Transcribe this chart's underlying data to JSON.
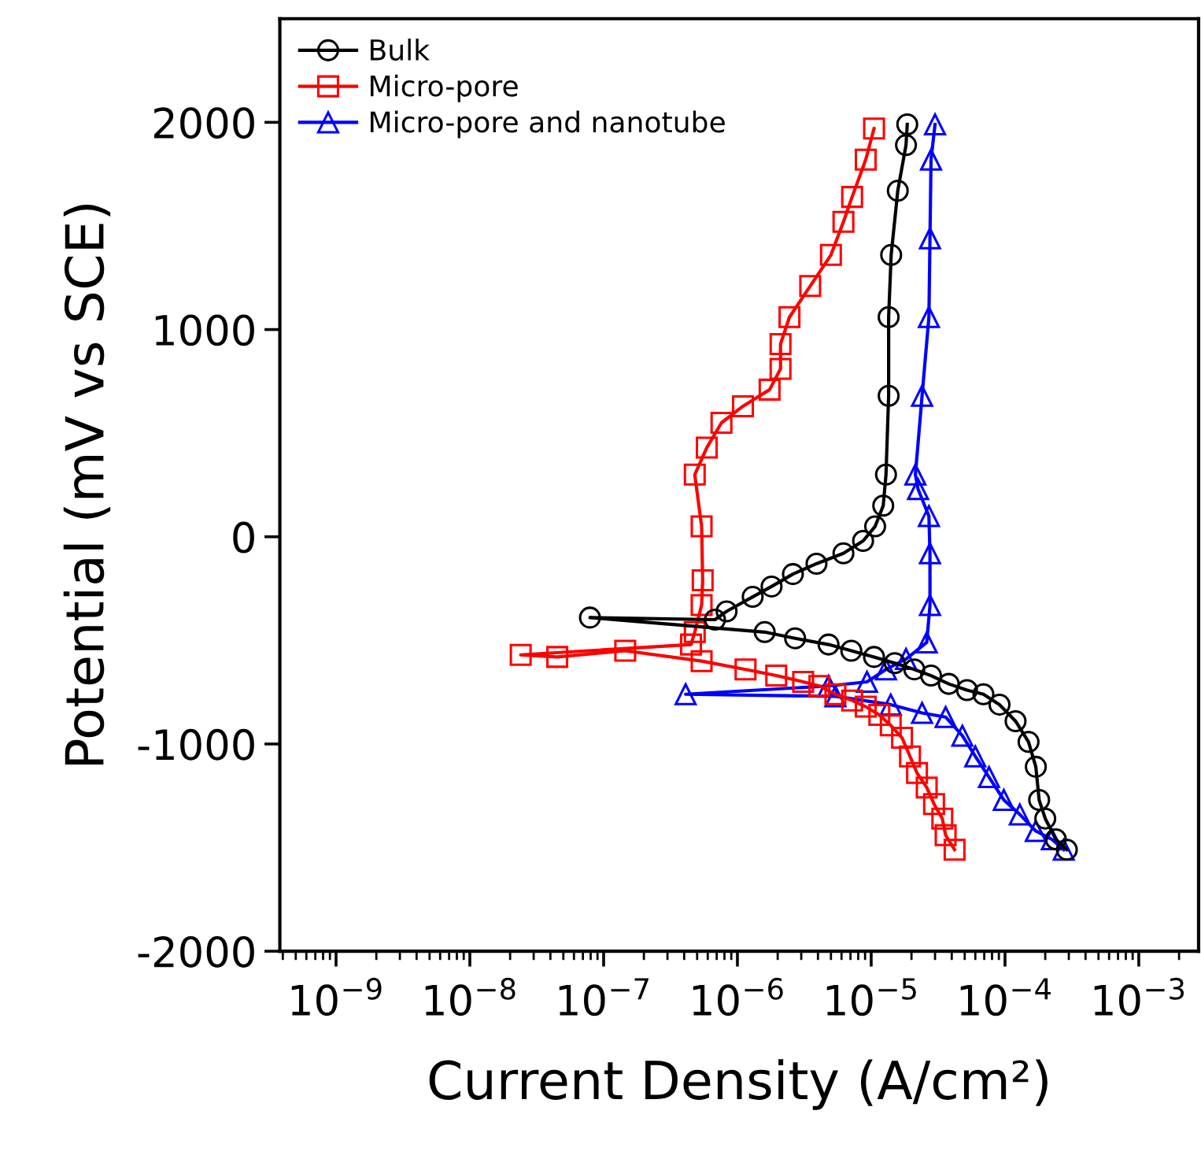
{
  "chart_data": {
    "type": "line",
    "xlabel": "Current Density (A/cm²)",
    "ylabel": "Potential (mV vs SCE)",
    "log": "x",
    "legend": "top left",
    "grid": false,
    "xlim": [
      3.8e-10,
      0.0028
    ],
    "ylim": [
      -2000,
      2500
    ],
    "xticks": [
      {
        "value": 1e-09,
        "label": "10$^{−9}$"
      },
      {
        "value": 1e-08,
        "label": "10$^{−8}$"
      },
      {
        "value": 1e-07,
        "label": "10$^{−7}$"
      },
      {
        "value": 1e-06,
        "label": "10$^{−6}$"
      },
      {
        "value": 1e-05,
        "label": "10$^{−5}$"
      },
      {
        "value": 0.0001,
        "label": "10$^{−4}$"
      },
      {
        "value": 0.001,
        "label": "10$^{−3}$"
      }
    ],
    "yticks": [
      -2000,
      -1000,
      0,
      1000,
      2000
    ],
    "series": [
      {
        "name": "Bulk",
        "color": "#000000",
        "marker": "circle",
        "x": [
          0.00029,
          0.00024,
          0.0002,
          0.00018,
          0.00017,
          0.00015,
          0.00012,
          9.1e-05,
          6.9e-05,
          5.2e-05,
          3.8e-05,
          2.8e-05,
          2.1e-05,
          1.5e-05,
          1.05e-05,
          7.1e-06,
          4.8e-06,
          2.7e-06,
          1.6e-06,
          7.9e-08,
          6.8e-07,
          8.3e-07,
          1.3e-06,
          1.8e-06,
          2.6e-06,
          3.9e-06,
          6.2e-06,
          8.7e-06,
          1.07e-05,
          1.23e-05,
          1.29e-05,
          1.35e-05,
          1.35e-05,
          1.41e-05,
          1.58e-05,
          1.82e-05,
          1.86e-05
        ],
        "values": [
          -1510,
          -1460,
          -1360,
          -1270,
          -1110,
          -990,
          -890,
          -810,
          -760,
          -740,
          -710,
          -670,
          -640,
          -610,
          -580,
          -550,
          -520,
          -490,
          -460,
          -390,
          -400,
          -360,
          -290,
          -240,
          -180,
          -130,
          -80,
          -20,
          50,
          150,
          300,
          680,
          1060,
          1360,
          1670,
          1890,
          1990
        ]
      },
      {
        "name": "Micro-pore",
        "color": "#ff0000",
        "marker": "square",
        "x": [
          4.2e-05,
          3.6e-05,
          3.4e-05,
          2.95e-05,
          2.6e-05,
          2.2e-05,
          1.95e-05,
          1.7e-05,
          1.4e-05,
          1.15e-05,
          9.1e-06,
          7.2e-06,
          5.4e-06,
          4.1e-06,
          3.1e-06,
          1.95e-06,
          1.15e-06,
          5.4e-07,
          1.45e-07,
          4.5e-08,
          2.4e-08,
          4.5e-07,
          4.8e-07,
          5.4e-07,
          5.5e-07,
          5.4e-07,
          4.8e-07,
          5.9e-07,
          7.6e-07,
          1.1e-06,
          1.74e-06,
          2.1e-06,
          2.1e-06,
          2.45e-06,
          3.5e-06,
          5e-06,
          6.2e-06,
          7.2e-06,
          9.1e-06,
          1.05e-05
        ],
        "values": [
          -1510,
          -1440,
          -1360,
          -1290,
          -1210,
          -1140,
          -1060,
          -970,
          -910,
          -860,
          -820,
          -790,
          -760,
          -720,
          -700,
          -670,
          -640,
          -600,
          -550,
          -580,
          -570,
          -520,
          -460,
          -330,
          -210,
          50,
          300,
          430,
          550,
          630,
          710,
          810,
          930,
          1060,
          1210,
          1360,
          1520,
          1640,
          1820,
          1970
        ]
      },
      {
        "name": "Micro-pore and nanotube",
        "color": "#0000ff",
        "marker": "triangle",
        "x": [
          0.000275,
          0.000224,
          0.00017,
          0.000129,
          9.8e-05,
          7.6e-05,
          6e-05,
          4.8e-05,
          3.6e-05,
          2.4e-05,
          1.4e-05,
          5.4e-06,
          4.1e-07,
          4.8e-06,
          9.3e-06,
          1.29e-05,
          1.82e-05,
          2.6e-05,
          2.75e-05,
          2.75e-05,
          2.7e-05,
          2.24e-05,
          2.14e-05,
          2.4e-05,
          2.7e-05,
          2.75e-05,
          2.8e-05,
          3e-05
        ],
        "values": [
          -1510,
          -1460,
          -1420,
          -1340,
          -1270,
          -1160,
          -1060,
          -960,
          -870,
          -850,
          -810,
          -770,
          -760,
          -720,
          -700,
          -640,
          -590,
          -510,
          -330,
          -80,
          100,
          230,
          300,
          680,
          1060,
          1440,
          1820,
          1990
        ]
      }
    ]
  }
}
